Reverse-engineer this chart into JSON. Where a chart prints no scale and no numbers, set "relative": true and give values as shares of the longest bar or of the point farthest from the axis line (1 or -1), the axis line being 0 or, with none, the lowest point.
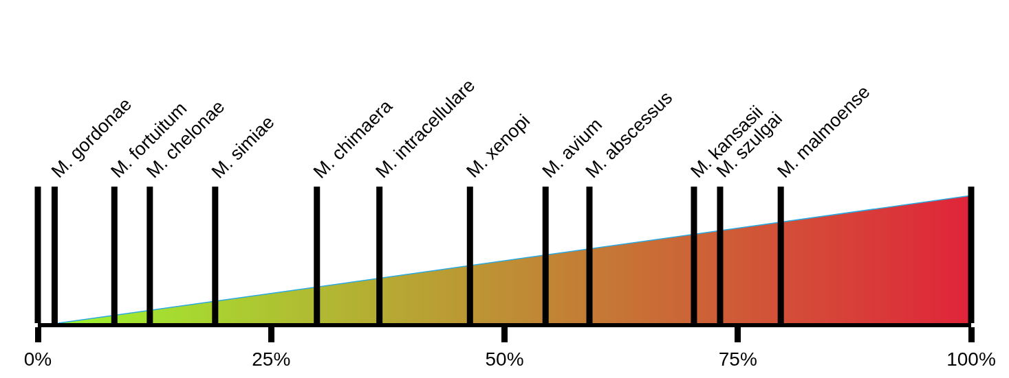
{
  "chart_data": {
    "type": "area",
    "relative": true,
    "series": [
      {
        "x": [
          2.2,
          100
        ],
        "values": [
          0,
          1
        ],
        "colors": [
          "#9ef52f",
          "#e0243a"
        ],
        "color": "#29a9e0"
      }
    ],
    "xlim": [
      0,
      100
    ],
    "xticks": [
      {
        "value": 0,
        "label": "0%"
      },
      {
        "value": 25,
        "label": "25%"
      },
      {
        "value": 50,
        "label": "50%"
      },
      {
        "value": 75,
        "label": "75%"
      },
      {
        "value": 100,
        "label": "100%"
      }
    ],
    "ref_lines": [
      {
        "axis": "x",
        "value": 0,
        "label": null
      },
      {
        "axis": "x",
        "value": 100,
        "label": null
      },
      {
        "axis": "x",
        "value": 1.8,
        "label": "M. gordonae"
      },
      {
        "axis": "x",
        "value": 8.2,
        "label": "M. fortuitum"
      },
      {
        "axis": "x",
        "value": 12.0,
        "label": "M. chelonae"
      },
      {
        "axis": "x",
        "value": 19.0,
        "label": "M. simiae"
      },
      {
        "axis": "x",
        "value": 29.9,
        "label": "M. chimaera"
      },
      {
        "axis": "x",
        "value": 36.6,
        "label": "M. intracellulare"
      },
      {
        "axis": "x",
        "value": 46.3,
        "label": "M. xenopi"
      },
      {
        "axis": "x",
        "value": 54.4,
        "label": "M. avium"
      },
      {
        "axis": "x",
        "value": 59.1,
        "label": "M. abscessus"
      },
      {
        "axis": "x",
        "value": 70.3,
        "label": "M. kansasii"
      },
      {
        "axis": "x",
        "value": 73.1,
        "label": "M. szulgai"
      },
      {
        "axis": "x",
        "value": 79.6,
        "label": "M. malmoense"
      }
    ]
  }
}
